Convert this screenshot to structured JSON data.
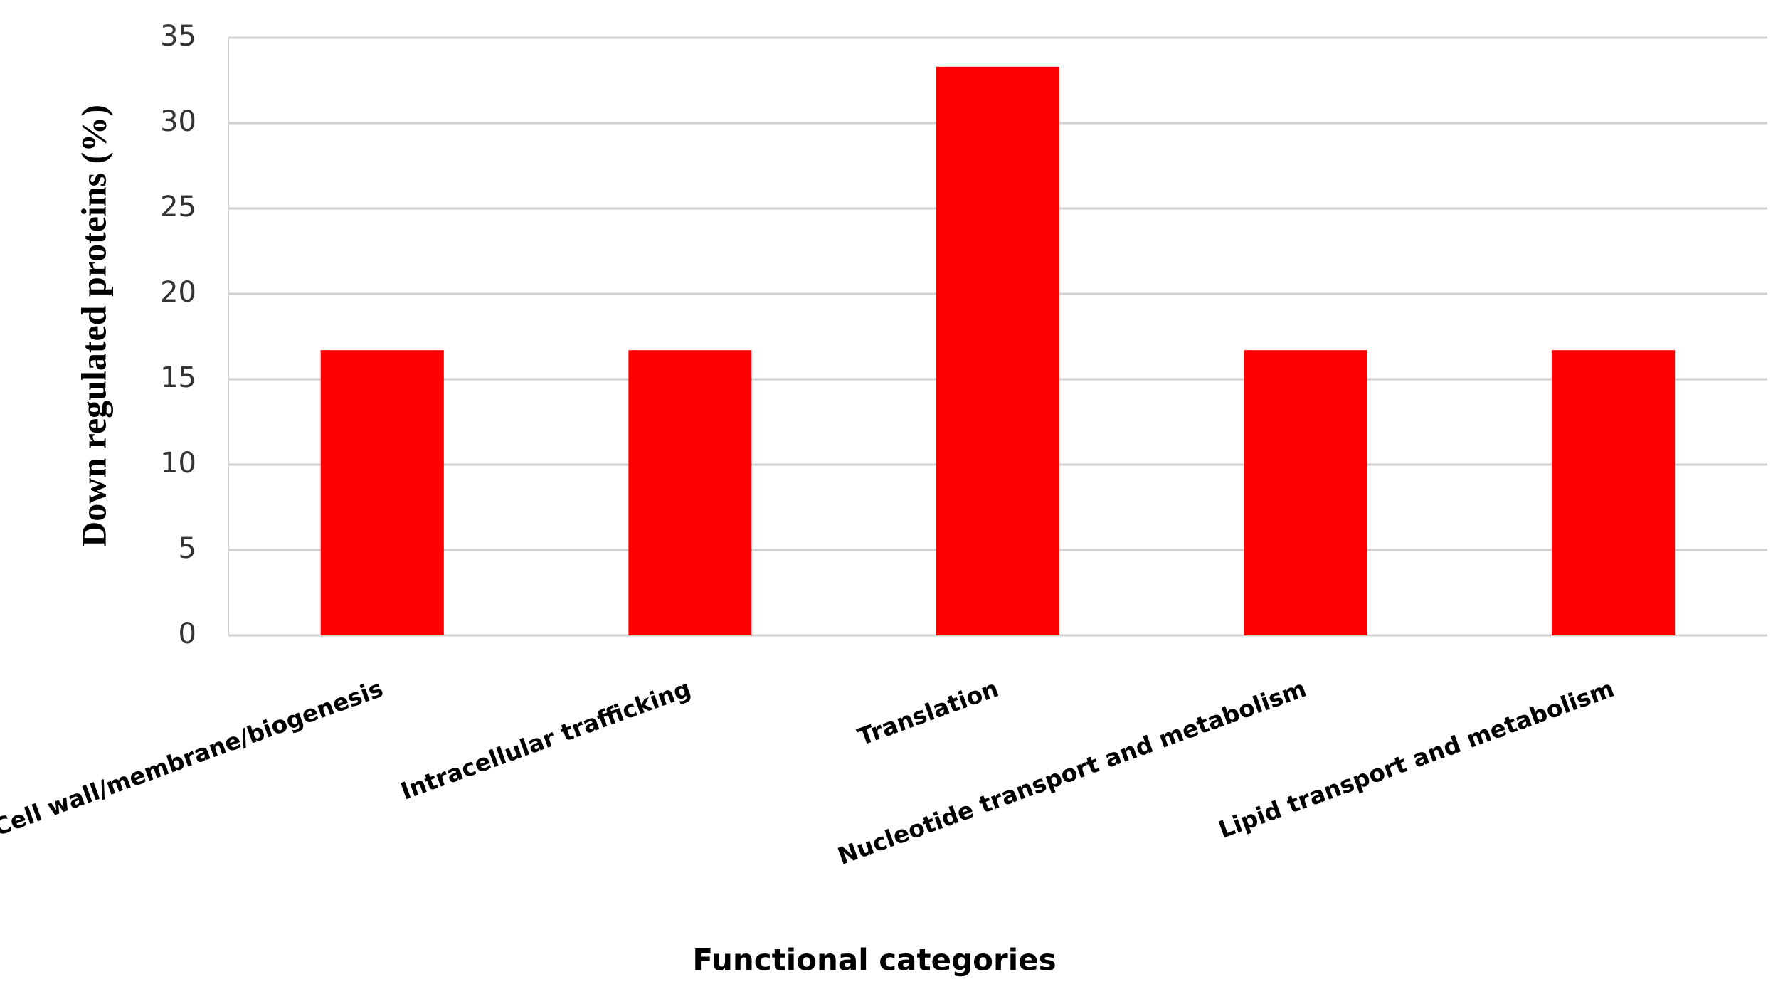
{
  "chart_data": {
    "type": "bar",
    "x_label": "Functional categories",
    "y_label": "Down regulated  proteins (%)",
    "categories": [
      "Cell wall/membrane/biogenesis",
      "Intracellular trafficking",
      "Translation",
      "Nucleotide transport and metabolism",
      "Lipid transport and metabolism"
    ],
    "values": [
      16.7,
      16.7,
      33.3,
      16.7,
      16.7
    ],
    "color": "#ff0000",
    "ylim": [
      0,
      35
    ],
    "yticks": [
      0,
      5,
      10,
      15,
      20,
      25,
      30,
      35
    ],
    "grid": true
  }
}
